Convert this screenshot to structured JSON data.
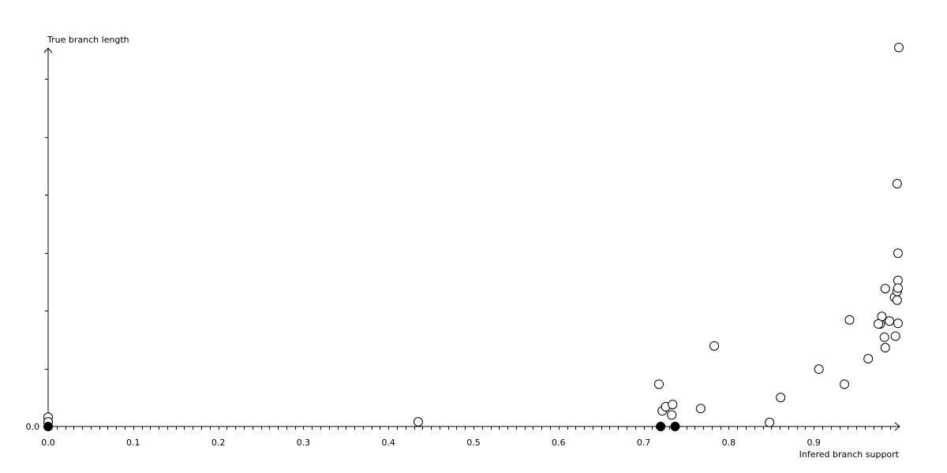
{
  "chart_data": {
    "type": "scatter",
    "title": "",
    "xlabel": "Infered branch support",
    "ylabel": "True branch length",
    "xlim": [
      0,
      1.0
    ],
    "ylim": [
      0,
      6.55
    ],
    "grid": false,
    "x_tick_labels": [
      "0.0",
      "0.1",
      "0.2",
      "0.3",
      "0.4",
      "0.5",
      "0.6",
      "0.7",
      "0.8",
      "0.9"
    ],
    "x_ticks": [
      0,
      0.1,
      0.2,
      0.3,
      0.4,
      0.5,
      0.6,
      0.7,
      0.8,
      0.9
    ],
    "y_tick_labels": [
      "0.0"
    ],
    "y_ticks_unlabeled": [
      1,
      2,
      3,
      4,
      5,
      6
    ],
    "colors": {
      "axis": "#000000",
      "open_marker_fill": "#ffffff",
      "filled_marker": "#000000"
    },
    "series": [
      {
        "marker": "open-circle",
        "points": [
          [
            0.0,
            0.16
          ],
          [
            0.0,
            0.08
          ],
          [
            0.435,
            0.08
          ],
          [
            0.718,
            0.73
          ],
          [
            0.722,
            0.27
          ],
          [
            0.726,
            0.34
          ],
          [
            0.734,
            0.38
          ],
          [
            0.733,
            0.2
          ],
          [
            0.767,
            0.31
          ],
          [
            0.783,
            1.39
          ],
          [
            0.848,
            0.07
          ],
          [
            0.861,
            0.5
          ],
          [
            0.906,
            0.99
          ],
          [
            0.936,
            0.73
          ],
          [
            0.942,
            1.84
          ],
          [
            0.964,
            1.17
          ],
          [
            0.978,
            1.77
          ],
          [
            0.98,
            1.9
          ],
          [
            0.976,
            1.77
          ],
          [
            0.983,
            1.54
          ],
          [
            0.984,
            1.36
          ],
          [
            0.984,
            2.38
          ],
          [
            0.989,
            1.82
          ],
          [
            0.996,
            1.56
          ],
          [
            0.995,
            2.23
          ],
          [
            0.998,
            2.18
          ],
          [
            0.998,
            2.33
          ],
          [
            0.999,
            2.52
          ],
          [
            0.999,
            2.39
          ],
          [
            0.999,
            1.78
          ],
          [
            0.999,
            2.99
          ],
          [
            0.998,
            4.19
          ],
          [
            1.0,
            6.54
          ]
        ]
      },
      {
        "marker": "filled-circle",
        "points": [
          [
            0.0,
            0.0
          ],
          [
            0.72,
            0.0
          ],
          [
            0.737,
            0.0
          ]
        ]
      }
    ]
  }
}
